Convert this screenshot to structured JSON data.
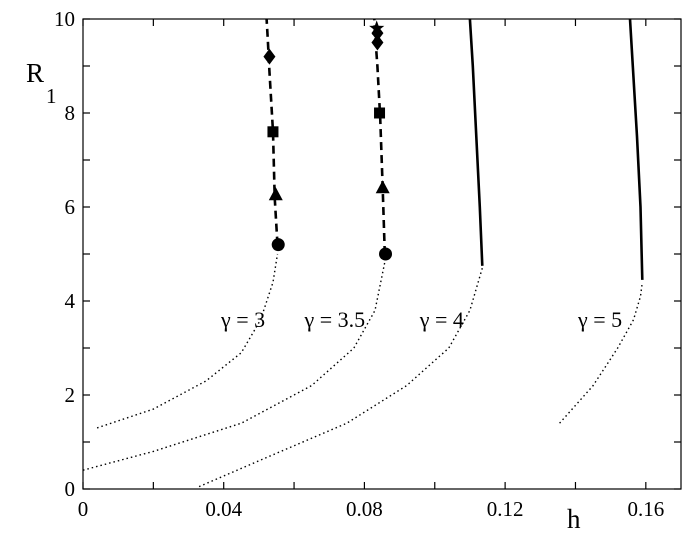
{
  "chart_data": {
    "type": "line",
    "xlabel": "h",
    "ylabel": "R",
    "ylabel_sub": "1",
    "xlim": [
      0,
      0.17
    ],
    "ylim": [
      0,
      10
    ],
    "xticks": [
      0,
      0.04,
      0.08,
      0.12,
      0.16
    ],
    "xtick_labels": [
      "0",
      "0.04",
      "0.08",
      "0.12",
      "0.16"
    ],
    "yticks": [
      0,
      2,
      4,
      6,
      8,
      10
    ],
    "ytick_labels": [
      "0",
      "2",
      "4",
      "6",
      "8",
      "10"
    ],
    "grid": false,
    "legend": "none",
    "series": [
      {
        "label": "γ = 3",
        "label_at": [
          0.0455,
          3.45
        ],
        "lower": {
          "style": "dotted",
          "x": [
            0.004,
            0.02,
            0.035,
            0.045,
            0.0505,
            0.054,
            0.0553
          ],
          "y": [
            1.3,
            1.7,
            2.3,
            2.9,
            3.6,
            4.4,
            5.0
          ]
        },
        "upper": {
          "style": "dashed",
          "x": [
            0.0553,
            0.0545,
            0.054,
            0.053,
            0.0525,
            0.0522
          ],
          "y": [
            5.2,
            6.2,
            7.6,
            8.9,
            9.6,
            10.0
          ]
        },
        "markers": [
          {
            "shape": "circle",
            "x": 0.0555,
            "y": 5.2
          },
          {
            "shape": "triangle",
            "x": 0.0548,
            "y": 6.25
          },
          {
            "shape": "square",
            "x": 0.054,
            "y": 7.6
          },
          {
            "shape": "diamond",
            "x": 0.053,
            "y": 9.2
          }
        ]
      },
      {
        "label": "γ = 3.5",
        "label_at": [
          0.0716,
          3.45
        ],
        "lower": {
          "style": "dotted",
          "x": [
            0.0,
            0.02,
            0.045,
            0.065,
            0.077,
            0.083,
            0.086
          ],
          "y": [
            0.4,
            0.8,
            1.4,
            2.2,
            3.0,
            3.8,
            4.9
          ]
        },
        "upper": {
          "style": "dashed",
          "x": [
            0.0858,
            0.0852,
            0.0845,
            0.0837,
            0.083,
            0.0828
          ],
          "y": [
            5.0,
            6.4,
            7.9,
            9.0,
            9.7,
            10.0
          ]
        },
        "markers": [
          {
            "shape": "circle",
            "x": 0.086,
            "y": 5.0
          },
          {
            "shape": "triangle",
            "x": 0.0852,
            "y": 6.4
          },
          {
            "shape": "square",
            "x": 0.0843,
            "y": 8.0
          },
          {
            "shape": "diamond",
            "x": 0.0837,
            "y": 9.5
          },
          {
            "shape": "diamond",
            "x": 0.0837,
            "y": 9.7
          },
          {
            "shape": "star",
            "x": 0.0835,
            "y": 9.8
          }
        ]
      },
      {
        "label": "γ = 4",
        "label_at": [
          0.102,
          3.45
        ],
        "lower": {
          "style": "dotted",
          "x": [
            0.033,
            0.05,
            0.075,
            0.092,
            0.104,
            0.11,
            0.1135
          ],
          "y": [
            0.05,
            0.6,
            1.4,
            2.2,
            3.0,
            3.8,
            4.7
          ]
        },
        "upper": {
          "style": "solid",
          "x": [
            0.1135,
            0.1128,
            0.1118,
            0.1108,
            0.11
          ],
          "y": [
            4.75,
            6.0,
            7.5,
            9.0,
            10.0
          ]
        },
        "markers": []
      },
      {
        "label": "γ = 5",
        "label_at": [
          0.147,
          3.45
        ],
        "lower": {
          "style": "dotted",
          "x": [
            0.1355,
            0.145,
            0.152,
            0.1565,
            0.1585,
            0.159
          ],
          "y": [
            1.4,
            2.2,
            3.0,
            3.6,
            4.1,
            4.4
          ]
        },
        "upper": {
          "style": "solid",
          "x": [
            0.159,
            0.1585,
            0.1575,
            0.1563,
            0.1555
          ],
          "y": [
            4.45,
            6.0,
            7.5,
            9.0,
            10.0
          ]
        },
        "markers": []
      }
    ]
  }
}
